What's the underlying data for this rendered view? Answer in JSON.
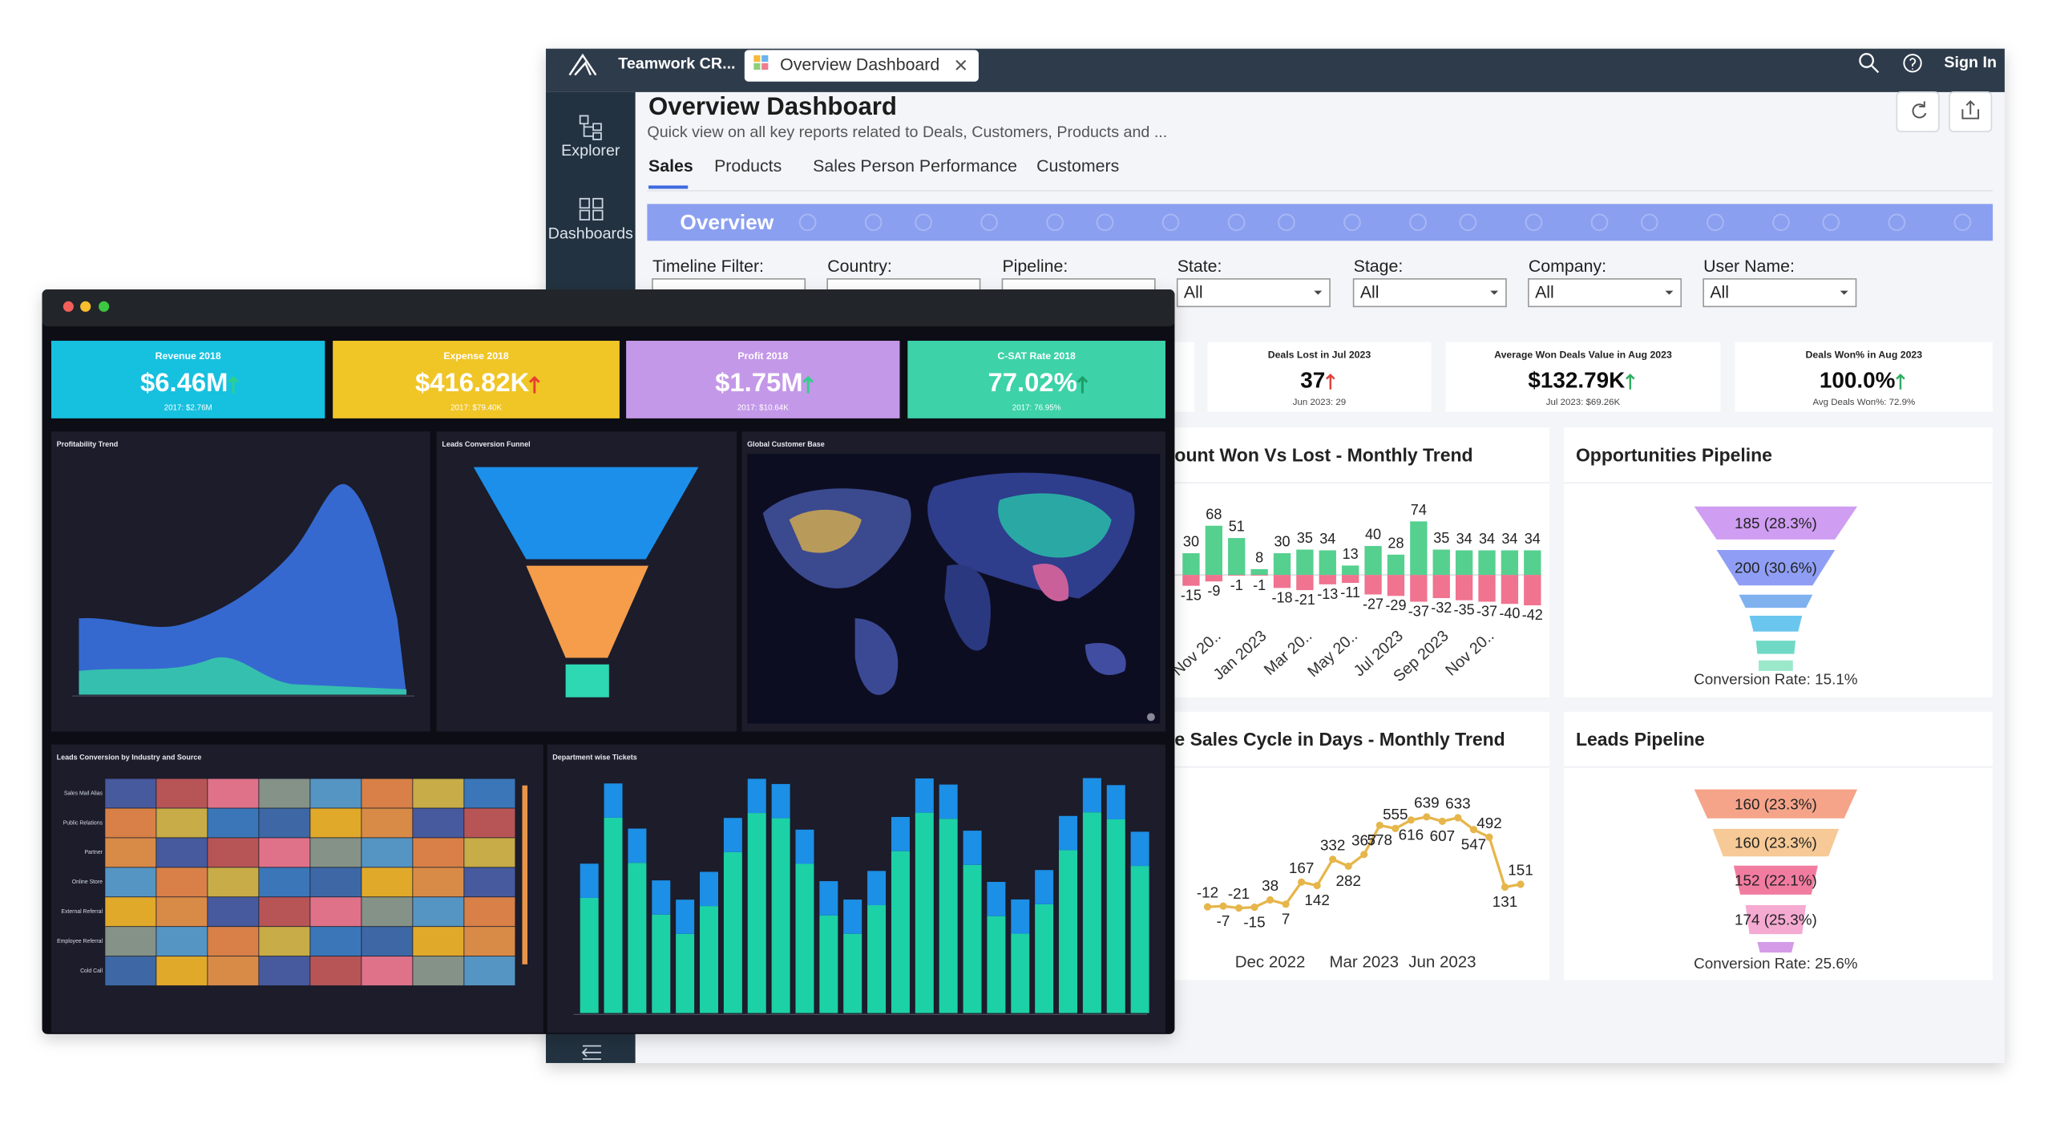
{
  "back_window": {
    "header": {
      "app_tab": "Teamwork CR...",
      "active_tab": "Overview Dashboard",
      "sign_in": "Sign In"
    },
    "sidebar": [
      "Explorer",
      "Dashboards"
    ],
    "title": "Overview Dashboard",
    "subtitle": "Quick view on all key reports related to Deals, Customers, Products and ...",
    "nav": [
      "Sales",
      "Products",
      "Sales Person Performance",
      "Customers"
    ],
    "banner": "Overview",
    "filters": [
      {
        "label": "Timeline Filter:"
      },
      {
        "label": "Country:"
      },
      {
        "label": "Pipeline:"
      },
      {
        "label": "State:",
        "value": "All"
      },
      {
        "label": "Stage:",
        "value": "All"
      },
      {
        "label": "Company:",
        "value": "All"
      },
      {
        "label": "User Name:",
        "value": "All"
      }
    ],
    "kpis": [
      {
        "title": "Deals Lost in Jul 2023",
        "value": "37",
        "compare": "Jun 2023: 29",
        "arrow_color": "#e0413a"
      },
      {
        "title": "Average Won Deals Value in Aug 2023",
        "value": "$132.79K",
        "compare": "Jul 2023: $69.26K",
        "arrow_color": "#2eae5f"
      },
      {
        "title": "Deals Won% in Aug 2023",
        "value": "100.0%",
        "compare": "Avg Deals Won%: 72.9%",
        "arrow_color": "#2eae5f"
      }
    ]
  },
  "chart_data": [
    {
      "type": "bar",
      "title": "ount Won Vs Lost - Monthly Trend",
      "categories": [
        null,
        "Nov 20..",
        null,
        "Jan 2023",
        null,
        "Mar 20..",
        null,
        "May 20..",
        null,
        "Jul 2023",
        null,
        "Sep 2023",
        null,
        "Nov 20..",
        null,
        null
      ],
      "series": [
        {
          "color": "#55d08e",
          "values": [
            30,
            68,
            51,
            8,
            30,
            35,
            34,
            13,
            40,
            28,
            74,
            35,
            34,
            34,
            34,
            34
          ]
        },
        {
          "color": "#f0738f",
          "values": [
            -15,
            -9,
            -1,
            -1,
            -18,
            -21,
            -13,
            -11,
            -27,
            -29,
            -37,
            -32,
            -35,
            -37,
            -40,
            -42
          ]
        }
      ]
    },
    {
      "type": "line",
      "title": "e Sales Cycle in Days - Monthly Trend",
      "categories": [
        null,
        null,
        null,
        null,
        "Dec 2022",
        null,
        null,
        null,
        null,
        null,
        "Mar 2023",
        null,
        null,
        null,
        null,
        "Jun 2023",
        null,
        null,
        null,
        null,
        null
      ],
      "series": [
        {
          "color": "#e6b64c",
          "values": [
            -12,
            -7,
            -21,
            -15,
            38,
            7,
            167,
            142,
            332,
            282,
            367,
            578,
            555,
            616,
            639,
            607,
            633,
            547,
            492,
            131,
            151
          ]
        }
      ]
    },
    {
      "type": "funnel",
      "title": "Opportunities Pipeline",
      "values": [
        185,
        200
      ],
      "value_labels": [
        "185 (28.3%)",
        "200 (30.6%)"
      ],
      "colors": [
        "#cf9df2",
        "#8f9ef4"
      ],
      "annotation": "Conversion Rate: 15.1%"
    },
    {
      "type": "funnel",
      "title": "Leads Pipeline",
      "values": [
        160,
        160,
        152,
        174
      ],
      "value_labels": [
        "160 (23.3%)",
        "160 (23.3%)",
        "152 (22.1%)",
        "174 (25.3%)"
      ],
      "colors": [
        "#f5a48a",
        "#f6c996",
        "#f27ba0",
        "#f5aad2"
      ],
      "annotation": "Conversion Rate: 25.6%"
    }
  ],
  "front_window": {
    "kpis": [
      {
        "title": "Revenue 2018",
        "value": "$6.46M",
        "compare": "2017: $2.76M",
        "color": "#15c0df",
        "arrow_color": "#2fd08a"
      },
      {
        "title": "Expense 2018",
        "value": "$416.82K",
        "compare": "2017: $79.40K",
        "color": "#f0c528",
        "arrow_color": "#e8412f"
      },
      {
        "title": "Profit 2018",
        "value": "$1.75M",
        "compare": "2017: $10.64K",
        "color": "#c498e8",
        "arrow_color": "#2fd08a"
      },
      {
        "title": "C-SAT Rate 2018",
        "value": "77.02%",
        "compare": "2017: 76.95%",
        "color": "#3dd2a8",
        "arrow_color": "#1f9e6a"
      }
    ],
    "panels": [
      "Profitability Trend",
      "Leads Conversion Funnel",
      "Global Customer Base",
      "Leads Conversion by Industry and Source",
      "Department wise Tickets"
    ],
    "heatmap_rows": [
      "Sales Mail Alias",
      "Public Relations",
      "Partner",
      "Online Store",
      "External Referral",
      "Employee Referral",
      "Cold Call"
    ]
  }
}
